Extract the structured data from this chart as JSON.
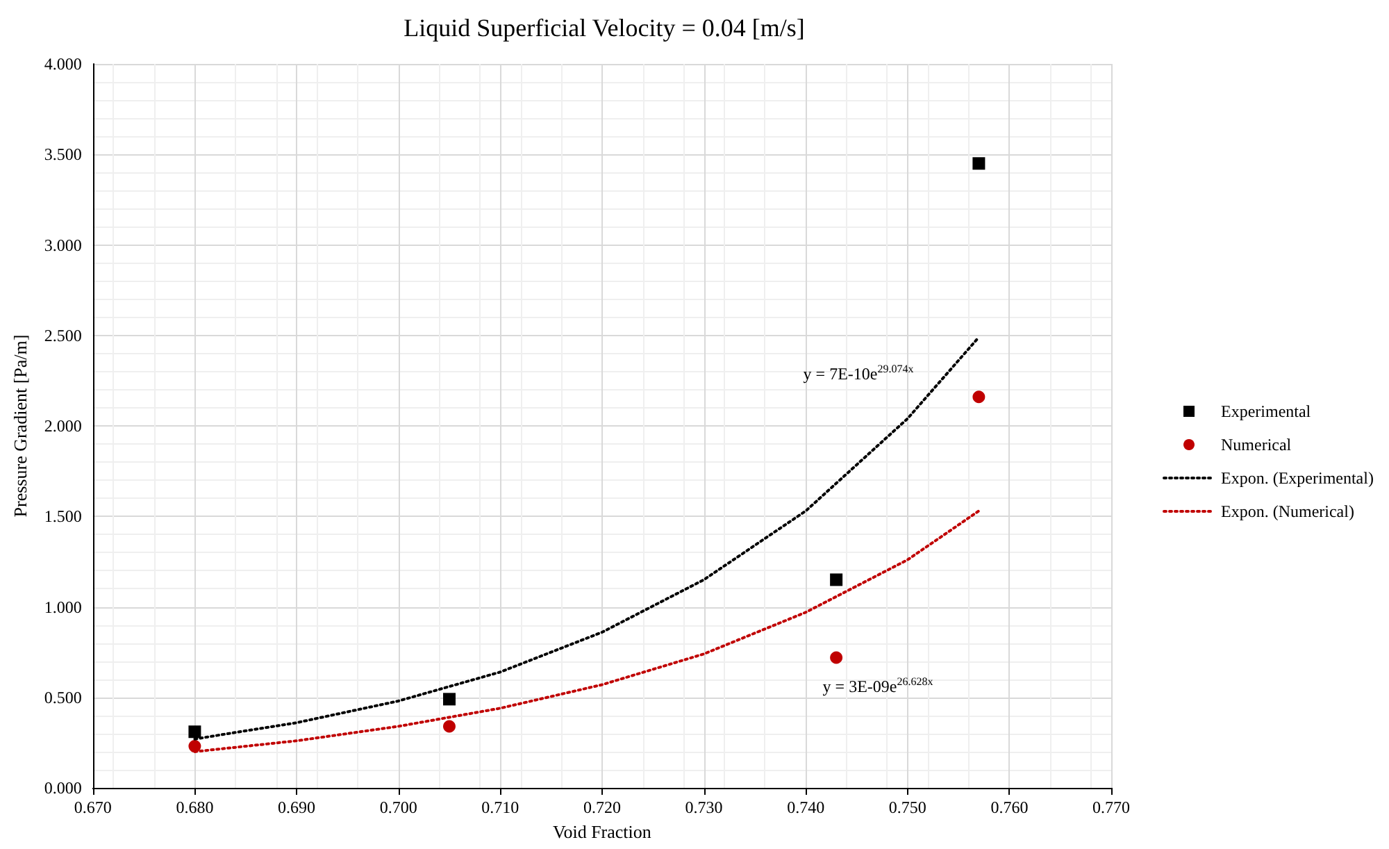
{
  "chart_data": {
    "type": "scatter",
    "title": "Liquid Superficial Velocity = 0.04 [m/s]",
    "xlabel": "Void Fraction",
    "ylabel": "Pressure Gradient [Pa/m]",
    "series": [
      {
        "name": "Experimental",
        "marker": "square",
        "color": "#000000",
        "x": [
          0.68,
          0.705,
          0.743,
          0.757
        ],
        "values": [
          0.31,
          0.49,
          1.15,
          3.45
        ]
      },
      {
        "name": "Numerical",
        "marker": "circle",
        "color": "#c00000",
        "x": [
          0.68,
          0.705,
          0.743,
          0.757
        ],
        "values": [
          0.23,
          0.34,
          0.72,
          2.16
        ]
      },
      {
        "name": "Expon. (Experimental)",
        "type": "line",
        "line_style": "dotted",
        "color": "#000000",
        "x": [
          0.68,
          0.69,
          0.7,
          0.71,
          0.72,
          0.73,
          0.74,
          0.75,
          0.757
        ],
        "values": [
          0.27,
          0.36,
          0.48,
          0.64,
          0.86,
          1.15,
          1.53,
          2.04,
          2.49
        ]
      },
      {
        "name": "Expon. (Numerical)",
        "type": "line",
        "line_style": "dotted",
        "color": "#c00000",
        "x": [
          0.68,
          0.69,
          0.7,
          0.71,
          0.72,
          0.73,
          0.74,
          0.75,
          0.757
        ],
        "values": [
          0.2,
          0.26,
          0.34,
          0.44,
          0.57,
          0.74,
          0.97,
          1.26,
          1.53
        ]
      }
    ],
    "annotations": [
      "y = 7E-10e$^{29.074x}$",
      "y = 3E-09e$^{26.628x}$"
    ],
    "xlim": [
      0.67,
      0.77
    ],
    "xticks": [
      {
        "value": 0.67,
        "label": "0.670"
      },
      {
        "value": 0.68,
        "label": "0.680"
      },
      {
        "value": 0.69,
        "label": "0.690"
      },
      {
        "value": 0.7,
        "label": "0.700"
      },
      {
        "value": 0.71,
        "label": "0.710"
      },
      {
        "value": 0.72,
        "label": "0.720"
      },
      {
        "value": 0.73,
        "label": "0.730"
      },
      {
        "value": 0.74,
        "label": "0.740"
      },
      {
        "value": 0.75,
        "label": "0.750"
      },
      {
        "value": 0.76,
        "label": "0.760"
      },
      {
        "value": 0.77,
        "label": "0.770"
      }
    ],
    "ylim": [
      0,
      4
    ],
    "yticks": [
      {
        "value": 0,
        "label": "0.000"
      },
      {
        "value": 0.5,
        "label": "0.500"
      },
      {
        "value": 1,
        "label": "1.000"
      },
      {
        "value": 1.5,
        "label": "1.500"
      },
      {
        "value": 2,
        "label": "2.000"
      },
      {
        "value": 2.5,
        "label": "2.500"
      },
      {
        "value": 3,
        "label": "3.000"
      },
      {
        "value": 3.5,
        "label": "3.500"
      },
      {
        "value": 4,
        "label": "4.000"
      }
    ],
    "grid": true,
    "legend": "right"
  }
}
